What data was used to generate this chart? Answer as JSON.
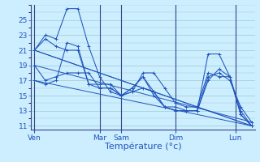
{
  "background_color": "#cceeff",
  "grid_color": "#99cccc",
  "line_color": "#2255bb",
  "xlabel": "Température (°c)",
  "ylim": [
    10.5,
    27
  ],
  "yticks": [
    11,
    13,
    15,
    17,
    19,
    21,
    23,
    25
  ],
  "x_day_labels": [
    "Ven",
    "Mar",
    "Sam",
    "Dim",
    "Lun"
  ],
  "x_day_positions": [
    0.0,
    6.0,
    8.0,
    13.0,
    18.5
  ],
  "xlim": [
    -0.3,
    20.3
  ],
  "n_points": 21,
  "series": [
    [
      21.0,
      23.0,
      22.5,
      26.5,
      26.5,
      21.5,
      17.5,
      15.5,
      15.0,
      16.0,
      17.5,
      15.0,
      13.5,
      13.5,
      13.0,
      13.0,
      20.5,
      20.5,
      17.5,
      12.5,
      11.0
    ],
    [
      19.0,
      17.0,
      17.5,
      18.0,
      18.0,
      18.0,
      16.0,
      16.0,
      15.0,
      15.5,
      16.0,
      15.5,
      13.5,
      13.0,
      13.0,
      13.0,
      17.5,
      18.0,
      17.0,
      13.5,
      11.5
    ],
    [
      17.0,
      16.5,
      17.0,
      22.0,
      21.5,
      16.5,
      16.5,
      16.5,
      15.0,
      15.5,
      18.0,
      18.0,
      16.0,
      14.0,
      13.5,
      13.5,
      18.0,
      17.5,
      17.5,
      13.0,
      11.0
    ],
    [
      21.0,
      22.5,
      21.5,
      21.0,
      21.0,
      16.5,
      16.0,
      16.0,
      15.0,
      16.0,
      17.5,
      15.5,
      13.5,
      13.0,
      13.0,
      13.0,
      17.0,
      18.5,
      17.5,
      12.5,
      11.0
    ]
  ],
  "trend_lines": [
    [
      21.0,
      11.0
    ],
    [
      19.0,
      11.5
    ],
    [
      17.0,
      11.0
    ],
    [
      21.0,
      11.0
    ]
  ],
  "vline_positions": [
    0.0,
    6.0,
    8.0,
    13.0,
    18.5
  ],
  "vline_color": "#334488",
  "tick_color": "#2255bb",
  "ylabel_fontsize": 6.5,
  "xlabel_fontsize": 8,
  "tick_fontsize": 6.5
}
